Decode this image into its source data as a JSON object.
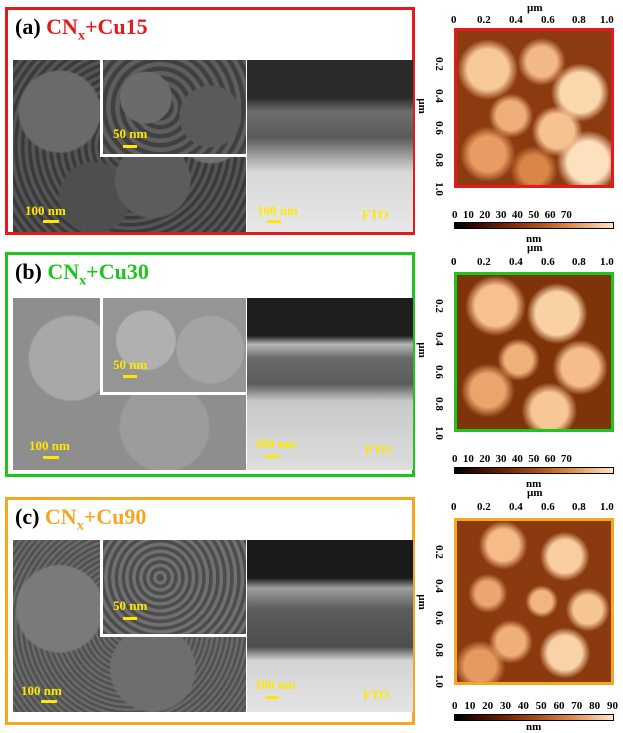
{
  "panels": [
    {
      "id": "a",
      "letter": "(a)",
      "label_main": "CN",
      "label_sub": "x",
      "label_tail": "+Cu15",
      "color": "#e41a1c",
      "sem_scale": "100 nm",
      "inset_scale": "50 nm",
      "xsec_scale": "100 nm",
      "xsec_substrate": "FTO",
      "afm": {
        "x_unit": "µm",
        "x_ticks": [
          "0",
          "0.2",
          "0.4",
          "0.6",
          "0.8",
          "1.0"
        ],
        "y_unit": "µm",
        "y_ticks": [
          "0.2",
          "0.4",
          "0.6",
          "0.8",
          "1.0"
        ],
        "cbar_ticks": [
          "0",
          "10",
          "20",
          "30",
          "40",
          "50",
          "60",
          "70"
        ],
        "cbar_unit": "nm"
      }
    },
    {
      "id": "b",
      "letter": "(b)",
      "label_main": "CN",
      "label_sub": "x",
      "label_tail": "+Cu30",
      "color": "#1fc41f",
      "sem_scale": "100 nm",
      "inset_scale": "50 nm",
      "xsec_scale": "100 nm",
      "xsec_substrate": "FTO",
      "afm": {
        "x_unit": "µm",
        "x_ticks": [
          "0",
          "0.2",
          "0.4",
          "0.6",
          "0.8",
          "1.0"
        ],
        "y_unit": "µm",
        "y_ticks": [
          "0.2",
          "0.4",
          "0.6",
          "0.8",
          "1.0"
        ],
        "cbar_ticks": [
          "0",
          "10",
          "20",
          "30",
          "40",
          "50",
          "60",
          "70"
        ],
        "cbar_unit": "nm"
      }
    },
    {
      "id": "c",
      "letter": "(c)",
      "label_main": "CN",
      "label_sub": "x",
      "label_tail": "+Cu90",
      "color": "#f5a623",
      "sem_scale": "100 nm",
      "inset_scale": "50 nm",
      "xsec_scale": "100 nm",
      "xsec_substrate": "FTO",
      "afm": {
        "x_unit": "µm",
        "x_ticks": [
          "0",
          "0.2",
          "0.4",
          "0.6",
          "0.8",
          "1.0"
        ],
        "y_unit": "µm",
        "y_ticks": [
          "0.2",
          "0.4",
          "0.6",
          "0.8",
          "1.0"
        ],
        "cbar_ticks": [
          "0",
          "10",
          "20",
          "30",
          "40",
          "50",
          "60",
          "70",
          "80",
          "90"
        ],
        "cbar_unit": "nm"
      }
    }
  ]
}
